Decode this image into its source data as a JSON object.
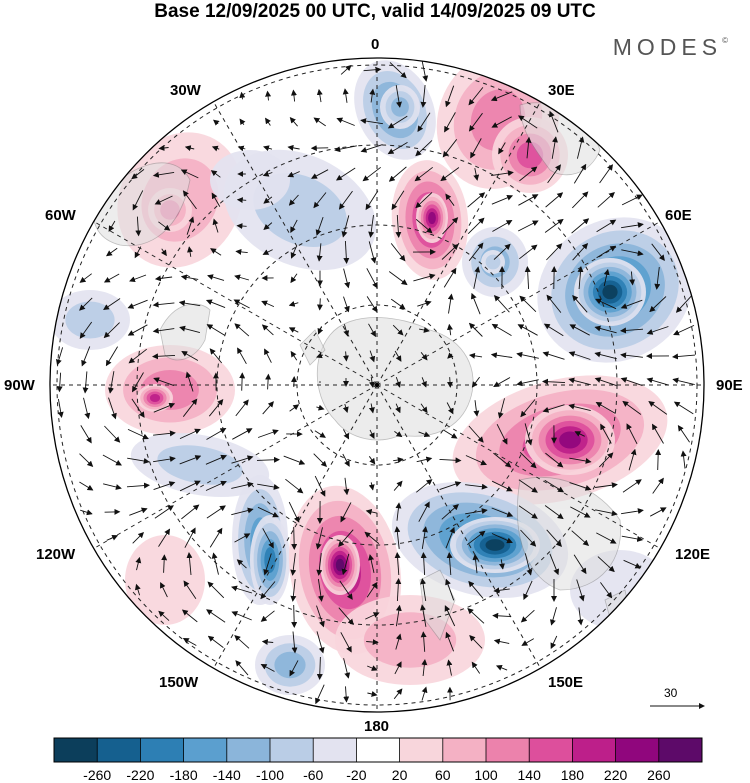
{
  "title": "Base 12/09/2025 00 UTC, valid 14/09/2025 09 UTC",
  "brand": "MODES",
  "brand_mark": "©",
  "longitude_labels": {
    "n0": "0",
    "ne30": "30E",
    "ne60": "60E",
    "e90": "90E",
    "se120": "120E",
    "se150": "150E",
    "s180": "180",
    "sw150": "150W",
    "sw120": "120W",
    "w90": "90W",
    "nw60": "60W",
    "nw30": "30W"
  },
  "vector_reference": "30",
  "colorbar": {
    "labels": [
      "-260",
      "-220",
      "-180",
      "-140",
      "-100",
      "-60",
      "-20",
      "20",
      "60",
      "100",
      "140",
      "180",
      "220",
      "260"
    ],
    "colors": [
      "#0c3e5b",
      "#15608f",
      "#2d7fb4",
      "#5b9fcf",
      "#8bb5da",
      "#bacde6",
      "#e3e3f0",
      "#ffffff",
      "#f8d6dc",
      "#f4b1c4",
      "#ec82ac",
      "#dd4f9c",
      "#bd1f8a",
      "#90067d",
      "#5d0a69"
    ]
  },
  "colors": {
    "land": "#dedede",
    "coast": "#8a8a8a",
    "grid": "#222222"
  }
}
